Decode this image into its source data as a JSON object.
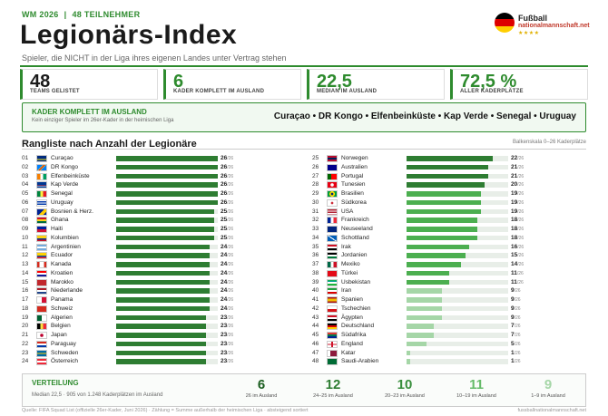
{
  "header": {
    "event": "WM 2026",
    "participants": "48 TEILNEHMER",
    "title": "Legionärs-Index",
    "subtitle": "Spieler, die NICHT in der Liga ihres eigenen Landes unter Vertrag stehen",
    "brand_name": "Fußball",
    "brand_url": "nationalmannschaft.net"
  },
  "stats": [
    {
      "value": "48",
      "label": "TEAMS GELISTET"
    },
    {
      "value": "6",
      "label": "KADER KOMPLETT IM AUSLAND"
    },
    {
      "value": "22,5",
      "label": "MEDIAN IM AUSLAND"
    },
    {
      "value": "72,5 %",
      "label": "ALLER KADERPLÄTZE"
    }
  ],
  "complete": {
    "heading": "KADER KOMPLETT IM AUSLAND",
    "sub": "Kein einziger Spieler im 26er-Kader in der heimischen Liga",
    "countries": "Curaçao • DR Kongo • Elfenbeinküste • Kap Verde • Senegal • Uruguay"
  },
  "ranking": {
    "title": "Rangliste nach Anzahl der Legionäre",
    "note": "Balkenskala 0–26 Kaderplätze",
    "of_label": "/26"
  },
  "colors": {
    "dark": "#2e7d32",
    "mid": "#4caf50",
    "light": "#a5d6a7",
    "accent": "#2e8b2e"
  },
  "chart_data": {
    "type": "bar",
    "orientation": "horizontal",
    "xlim": [
      0,
      26
    ],
    "categories": [
      "Curaçao",
      "DR Kongo",
      "Elfenbeinküste",
      "Kap Verde",
      "Senegal",
      "Uruguay",
      "Bosnien & Herz.",
      "Ghana",
      "Haiti",
      "Kolumbien",
      "Argentinien",
      "Ecuador",
      "Kanada",
      "Kroatien",
      "Marokko",
      "Niederlande",
      "Panama",
      "Schweiz",
      "Algerien",
      "Belgien",
      "Japan",
      "Paraguay",
      "Schweden",
      "Österreich",
      "Norwegen",
      "Australien",
      "Portugal",
      "Tunesien",
      "Brasilien",
      "Südkorea",
      "USA",
      "Frankreich",
      "Neuseeland",
      "Schottland",
      "Irak",
      "Jordanien",
      "Mexiko",
      "Türkei",
      "Usbekistan",
      "Iran",
      "Spanien",
      "Tschechien",
      "Ägypten",
      "Deutschland",
      "Südafrika",
      "England",
      "Katar",
      "Saudi-Arabien"
    ],
    "ranks": [
      "01",
      "02",
      "03",
      "04",
      "05",
      "06",
      "07",
      "08",
      "09",
      "10",
      "11",
      "12",
      "13",
      "14",
      "15",
      "16",
      "17",
      "18",
      "19",
      "20",
      "21",
      "22",
      "23",
      "24",
      "25",
      "26",
      "27",
      "28",
      "29",
      "30",
      "31",
      "32",
      "33",
      "34",
      "35",
      "36",
      "37",
      "38",
      "39",
      "40",
      "41",
      "42",
      "43",
      "44",
      "45",
      "46",
      "47",
      "48"
    ],
    "values": [
      26,
      26,
      26,
      26,
      26,
      26,
      25,
      25,
      25,
      25,
      24,
      24,
      24,
      24,
      24,
      24,
      24,
      24,
      23,
      23,
      23,
      23,
      23,
      23,
      22,
      21,
      21,
      20,
      19,
      19,
      19,
      18,
      18,
      18,
      16,
      15,
      14,
      11,
      11,
      9,
      9,
      9,
      9,
      7,
      7,
      5,
      1,
      1
    ]
  },
  "flags": [
    "cw",
    "cd",
    "ci",
    "cv",
    "sn",
    "uy",
    "ba",
    "gh",
    "ht",
    "co",
    "ar",
    "ec",
    "ca",
    "hr",
    "ma",
    "nl",
    "pa",
    "ch",
    "dz",
    "be",
    "jp",
    "py",
    "se",
    "at",
    "no",
    "au",
    "pt",
    "tn",
    "br",
    "kr",
    "us",
    "fr",
    "nz",
    "gb-sct",
    "iq",
    "jo",
    "mx",
    "tr",
    "uz",
    "ir",
    "es",
    "cz",
    "eg",
    "de",
    "za",
    "gb-eng",
    "qa",
    "sa"
  ],
  "distribution": {
    "heading": "VERTEILUNG",
    "sub": "Median 22,5 · 905 von 1.248 Kaderplätzen im Ausland",
    "buckets": [
      {
        "count": "6",
        "label": "26 im Ausland"
      },
      {
        "count": "12",
        "label": "24–25 im Ausland"
      },
      {
        "count": "10",
        "label": "20–23 im Ausland"
      },
      {
        "count": "11",
        "label": "10–19 im Ausland"
      },
      {
        "count": "9",
        "label": "1–9 im Ausland"
      }
    ]
  },
  "footer": {
    "left": "Quelle: FIFA Squad List (offizielle 26er-Kader, Juni 2026) · Zählung = Summe außerhalb der heimischen Liga · absteigend sortiert",
    "right": "fussballnationalmannschaft.net"
  }
}
